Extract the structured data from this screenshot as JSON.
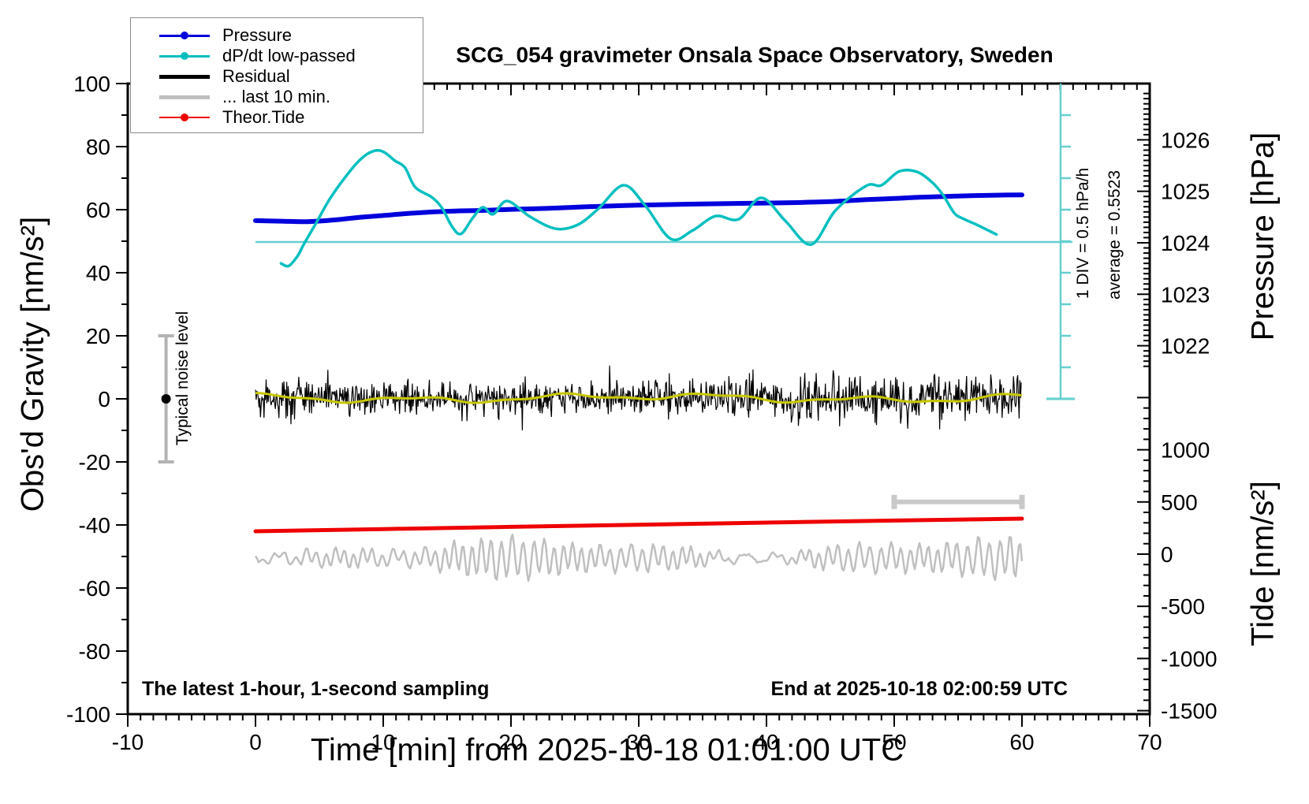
{
  "title": "SCG_054 gravimeter Onsala Space Observatory, Sweden",
  "footer_left": "The latest 1-hour, 1-second sampling",
  "footer_right": "End at 2025-10-18 02:00:59 UTC",
  "axes": {
    "x": {
      "label": "Time [min] from 2025-10-18 01:01:00 UTC",
      "min": -10,
      "max": 70,
      "major_ticks": [
        -10,
        0,
        10,
        20,
        30,
        40,
        50,
        60,
        70
      ],
      "minor_step": 1
    },
    "gravity": {
      "label": "Obs'd Gravity [nm/s²]",
      "min": -100,
      "max": 100,
      "major_ticks": [
        100,
        80,
        60,
        40,
        20,
        0,
        -20,
        -40,
        -60,
        -80,
        -100
      ],
      "minor_step": 10
    },
    "pressure": {
      "label": "Pressure [hPa]",
      "major_ticks": [
        1026,
        1025,
        1024,
        1023,
        1022
      ],
      "minor_step": 0.1
    },
    "tide": {
      "label": "Tide [nm/s²]",
      "major_ticks": [
        1000,
        500,
        0,
        -500,
        -1000,
        -1500
      ],
      "minor_step": 100
    }
  },
  "annotations": {
    "noise_label": "Typical noise level",
    "div_label": "1 DIV = 0.5 hPa/h",
    "average_label": "average = 0.5523"
  },
  "legend": [
    {
      "label": "Pressure",
      "color": "#0000dd",
      "width": 3,
      "marker": true
    },
    {
      "label": "dP/dt low-passed",
      "color": "#00bfbf",
      "width": 3,
      "marker": true
    },
    {
      "label": "Residual",
      "color": "#000000",
      "width": 5,
      "marker": false
    },
    {
      "label": "... last 10 min.",
      "color": "#bfbfbf",
      "width": 5,
      "marker": false
    },
    {
      "label": "Theor.Tide",
      "color": "#ee0000",
      "width": 2,
      "marker": true
    }
  ],
  "colors": {
    "pressure": "#0000dd",
    "dpdt": "#00bfbf",
    "dpdt_reference": "#66cfcf",
    "residual": "#000000",
    "residual_smooth": "#c8c800",
    "last10": "#bfbfbf",
    "tide": "#ee0000",
    "noise_marker": "#b3b3b3",
    "frame": "#000000"
  },
  "chart_data": {
    "type": "line",
    "xlabel": "Time [min] from 2025-10-18 01:01:00 UTC",
    "x_range_min": [
      -10,
      70
    ],
    "gravity_range": [
      -100,
      100
    ],
    "tide_axis_labels": [
      1000,
      500,
      0,
      -500,
      -1000,
      -1500
    ],
    "pressure_axis_labels": [
      1026,
      1025,
      1024,
      1023,
      1022
    ],
    "dpdt_scale": {
      "div_value_hpa_per_h": 0.5,
      "average_hpa_per_h": 0.5523,
      "zero_at_gravity": 50
    },
    "last10_interval_min": [
      50,
      60
    ],
    "noise_level_bar": {
      "center_gravity": 0,
      "half_range_gravity": 20,
      "at_time_min": -7
    },
    "series": [
      {
        "name": "Pressure",
        "axis": "pressure_hPa",
        "points": [
          [
            0,
            1024.43
          ],
          [
            2,
            1024.42
          ],
          [
            4,
            1024.41
          ],
          [
            6,
            1024.44
          ],
          [
            8,
            1024.49
          ],
          [
            10,
            1024.53
          ],
          [
            12,
            1024.57
          ],
          [
            14,
            1024.6
          ],
          [
            16,
            1024.62
          ],
          [
            18,
            1024.63
          ],
          [
            20,
            1024.65
          ],
          [
            23,
            1024.67
          ],
          [
            26,
            1024.7
          ],
          [
            30,
            1024.73
          ],
          [
            34,
            1024.75
          ],
          [
            38,
            1024.765
          ],
          [
            42,
            1024.78
          ],
          [
            45,
            1024.8
          ],
          [
            48,
            1024.84
          ],
          [
            50,
            1024.86
          ],
          [
            52,
            1024.885
          ],
          [
            54,
            1024.9
          ],
          [
            56,
            1024.915
          ],
          [
            58,
            1024.925
          ],
          [
            60,
            1024.93
          ]
        ]
      },
      {
        "name": "dP/dt low-passed",
        "axis": "hPa_per_h",
        "points": [
          [
            2.0,
            -0.34
          ],
          [
            2.6,
            -0.38
          ],
          [
            3.3,
            -0.22
          ],
          [
            3.8,
            -0.03
          ],
          [
            4.8,
            0.32
          ],
          [
            5.9,
            0.71
          ],
          [
            7.5,
            1.15
          ],
          [
            8.5,
            1.36
          ],
          [
            9.4,
            1.45
          ],
          [
            10.1,
            1.42
          ],
          [
            10.9,
            1.29
          ],
          [
            11.7,
            1.18
          ],
          [
            12.5,
            0.87
          ],
          [
            13.8,
            0.71
          ],
          [
            14.6,
            0.54
          ],
          [
            15.4,
            0.24
          ],
          [
            16.1,
            0.13
          ],
          [
            17.0,
            0.38
          ],
          [
            17.8,
            0.55
          ],
          [
            18.6,
            0.44
          ],
          [
            19.7,
            0.65
          ],
          [
            21.5,
            0.4
          ],
          [
            23.5,
            0.21
          ],
          [
            25.2,
            0.27
          ],
          [
            26.8,
            0.52
          ],
          [
            28.8,
            0.9
          ],
          [
            30.5,
            0.58
          ],
          [
            32.5,
            0.05
          ],
          [
            34.2,
            0.18
          ],
          [
            36.0,
            0.41
          ],
          [
            37.8,
            0.36
          ],
          [
            39.6,
            0.7
          ],
          [
            41.5,
            0.33
          ],
          [
            43.5,
            -0.04
          ],
          [
            45.4,
            0.5
          ],
          [
            47.8,
            0.89
          ],
          [
            49.0,
            0.9
          ],
          [
            50.4,
            1.12
          ],
          [
            51.8,
            1.11
          ],
          [
            53.0,
            0.94
          ],
          [
            53.8,
            0.75
          ],
          [
            54.7,
            0.46
          ],
          [
            55.4,
            0.37
          ],
          [
            56.5,
            0.27
          ],
          [
            58.0,
            0.12
          ]
        ]
      },
      {
        "name": "Theor.Tide",
        "axis": "tide_nm_s2",
        "points": [
          [
            0,
            219
          ],
          [
            10,
            240
          ],
          [
            20,
            261
          ],
          [
            30,
            282
          ],
          [
            40,
            302
          ],
          [
            50,
            322
          ],
          [
            60,
            340
          ]
        ]
      },
      {
        "name": "Residual",
        "axis": "gravity_nm_s2",
        "description": "1-second noise band centered at 0, typical ±5, spikes to ±13"
      },
      {
        "name": "... last 10 min.",
        "axis": "tide_nm_s2",
        "description": "magnified residual of last 10 min, oscillating around -50"
      },
      {
        "name": "Residual low-passed (yellow)",
        "axis": "gravity_nm_s2",
        "description": "smooth line through residual at 0, ±1.5"
      }
    ]
  }
}
